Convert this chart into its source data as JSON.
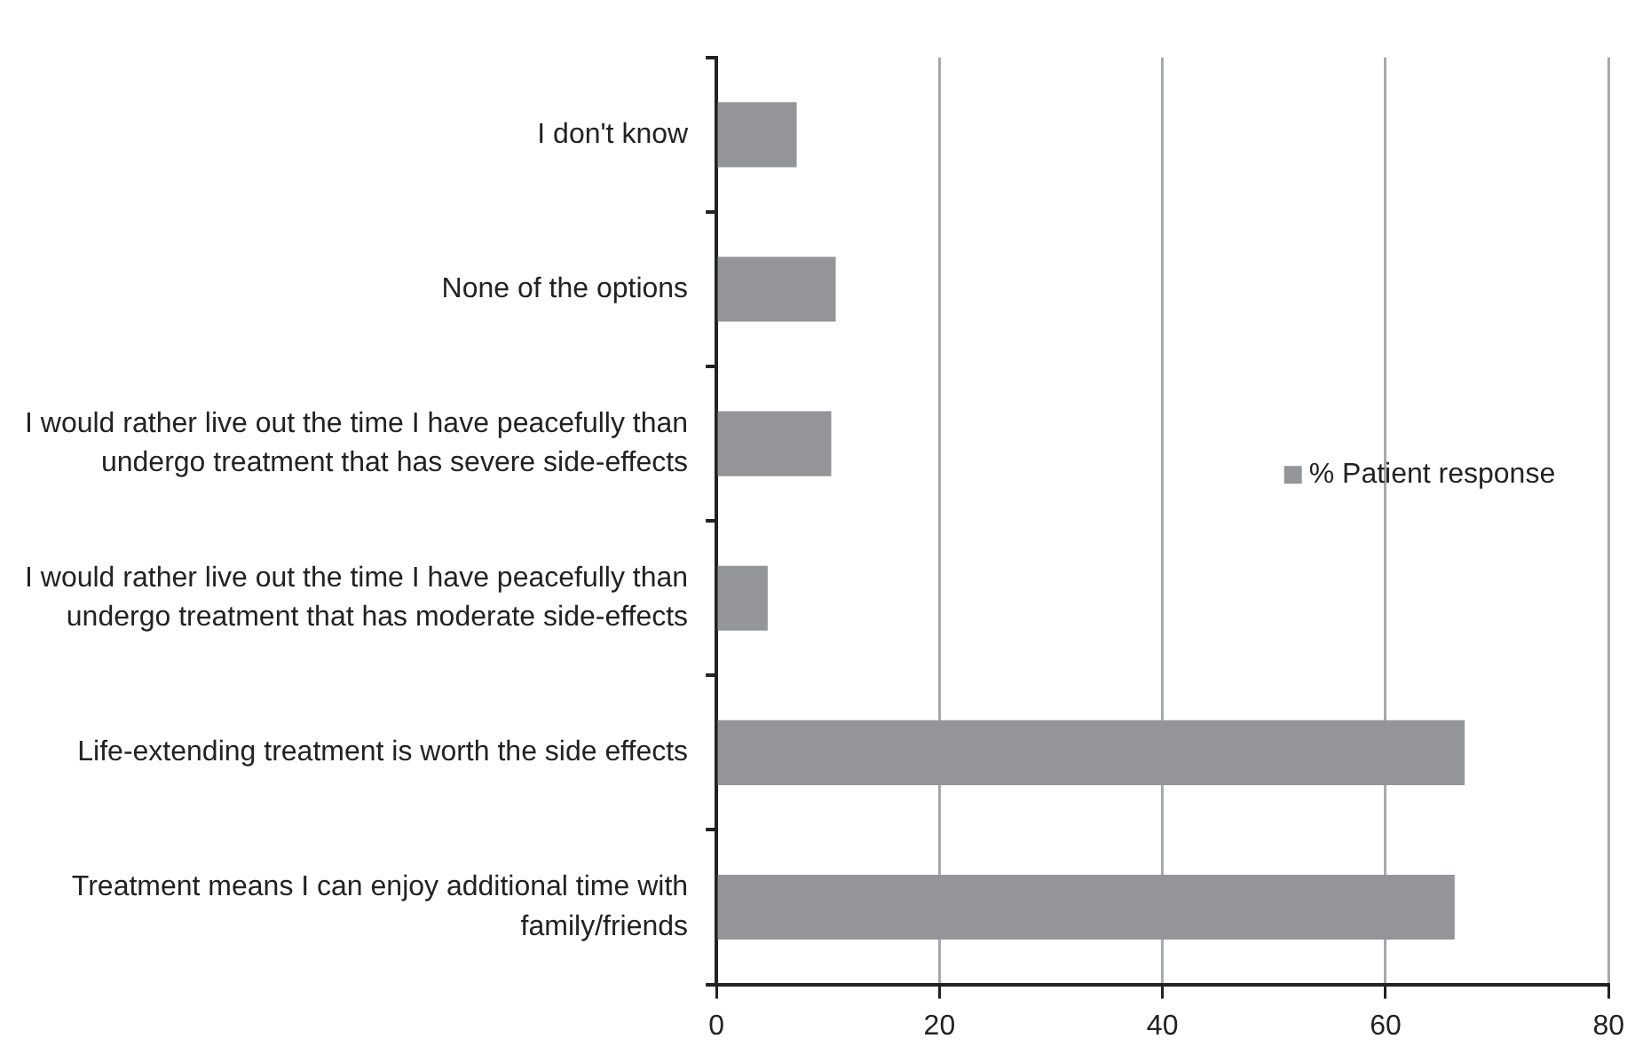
{
  "chart_data": {
    "type": "bar",
    "orientation": "horizontal",
    "categories": [
      "I don't know",
      "None of the options",
      "I would rather live out the time I have peacefully than undergo treatment that has severe side-effects",
      "I would rather live out the time I have peacefully than undergo treatment that has moderate side-effects",
      "Life-extending treatment is worth the side effects",
      "Treatment means I can enjoy additional time with family/friends"
    ],
    "series": [
      {
        "name": "% Patient response",
        "color": "#939598",
        "values": [
          7.2,
          10.7,
          10.3,
          4.6,
          67.1,
          66.2
        ]
      }
    ],
    "xlim": [
      0,
      80
    ],
    "xticks": [
      0,
      20,
      40,
      60,
      80
    ],
    "grid": "x",
    "legend": "right"
  }
}
